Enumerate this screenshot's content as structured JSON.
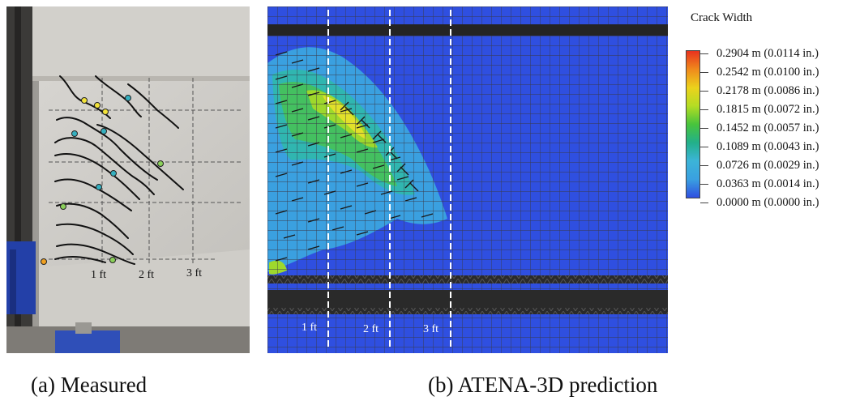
{
  "captions": {
    "measured": "(a) Measured",
    "prediction": "(b) ATENA-3D prediction"
  },
  "photo": {
    "distance_labels": [
      "1 ft",
      "2 ft",
      "3 ft"
    ]
  },
  "simulation": {
    "distance_labels": [
      "1 ft",
      "2 ft",
      "3 ft"
    ]
  },
  "legend": {
    "title": "Crack Width",
    "labels": [
      "0.2904 m (0.0114 in.)",
      "0.2542 m (0.0100 in.)",
      "0.2178 m (0.0086 in.)",
      "0.1815 m (0.0072 in.)",
      "0.1452 m (0.0057 in.)",
      "0.1089 m (0.0043 in.)",
      "0.0726 m (0.0029 in.)",
      "0.0363 m (0.0014 in.)",
      "0.0000 m (0.0000 in.)"
    ],
    "colors": [
      "#e8321e",
      "#f08a1c",
      "#ecd21c",
      "#b4dc24",
      "#48c43c",
      "#22b08a",
      "#3cb4d8",
      "#3aa0e0",
      "#2f4fe0"
    ]
  }
}
